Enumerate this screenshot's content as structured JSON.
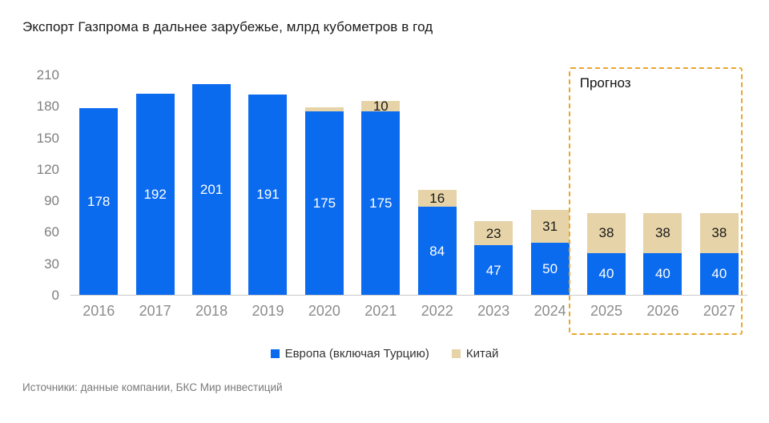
{
  "title": "Экспорт Газпрома в дальнее зарубежье, млрд кубометров в год",
  "source": "Источники: данные компании, БКС Мир инвестиций",
  "forecast_label": "Прогноз",
  "colors": {
    "europe": "#0b6bef",
    "china": "#e6d3a7",
    "forecast_border": "#eaa72c"
  },
  "legend": [
    {
      "label": "Европа (включая Турцию)",
      "color": "#0b6bef"
    },
    {
      "label": "Китай",
      "color": "#e6d3a7"
    }
  ],
  "chart_data": {
    "type": "bar",
    "stacked": true,
    "title": "Экспорт Газпрома в дальнее зарубежье, млрд кубометров в год",
    "categories": [
      "2016",
      "2017",
      "2018",
      "2019",
      "2020",
      "2021",
      "2022",
      "2023",
      "2024",
      "2025",
      "2026",
      "2027"
    ],
    "series": [
      {
        "name": "Европа (включая Турцию)",
        "key": "europe",
        "color": "#0b6bef",
        "label_style": "light",
        "values": [
          178,
          192,
          201,
          191,
          175,
          175,
          84,
          47,
          50,
          40,
          40,
          40
        ],
        "labels": [
          "178",
          "192",
          "201",
          "191",
          "175",
          "175",
          "84",
          "47",
          "50",
          "40",
          "40",
          "40"
        ]
      },
      {
        "name": "Китай",
        "key": "china",
        "color": "#e6d3a7",
        "label_style": "dark",
        "values": [
          0,
          0,
          0,
          0,
          4,
          10,
          16,
          23,
          31,
          38,
          38,
          38
        ],
        "labels": [
          "",
          "",
          "",
          "",
          "",
          "10",
          "16",
          "23",
          "31",
          "38",
          "38",
          "38"
        ]
      }
    ],
    "ylim": [
      0,
      210
    ],
    "yticks": [
      0,
      30,
      60,
      90,
      120,
      150,
      180,
      210
    ],
    "forecast_categories": [
      "2025",
      "2026",
      "2027"
    ],
    "grid": false,
    "legend_position": "bottom"
  }
}
